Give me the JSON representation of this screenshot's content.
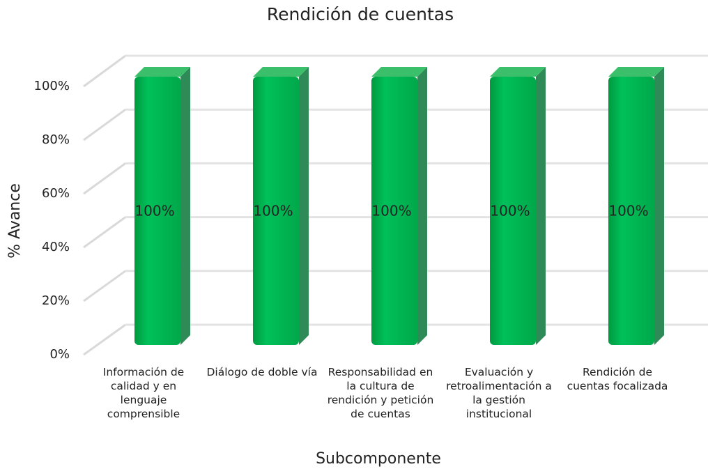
{
  "chart_data": {
    "type": "bar3d",
    "title": "Rendición de cuentas",
    "categories": [
      "Información de calidad y en lenguaje comprensible",
      "Diálogo de doble vía",
      "Responsabilidad en la cultura de rendición y petición de cuentas",
      "Evaluación y retroalimentación a la gestión institucional",
      "Rendición de cuentas focalizada"
    ],
    "values": [
      100,
      100,
      100,
      100,
      100
    ],
    "value_labels": [
      "100%",
      "100%",
      "100%",
      "100%",
      "100%"
    ],
    "color": "#00b050",
    "ylim": [
      0,
      100
    ],
    "yticks": [
      {
        "value": 0,
        "label": "0%"
      },
      {
        "value": 20,
        "label": "20%"
      },
      {
        "value": 40,
        "label": "40%"
      },
      {
        "value": 60,
        "label": "60%"
      },
      {
        "value": 80,
        "label": "80%"
      },
      {
        "value": 100,
        "label": "100%"
      }
    ],
    "ylabel": "% Avance",
    "xlabel": "Subcomponente",
    "grid": true
  }
}
